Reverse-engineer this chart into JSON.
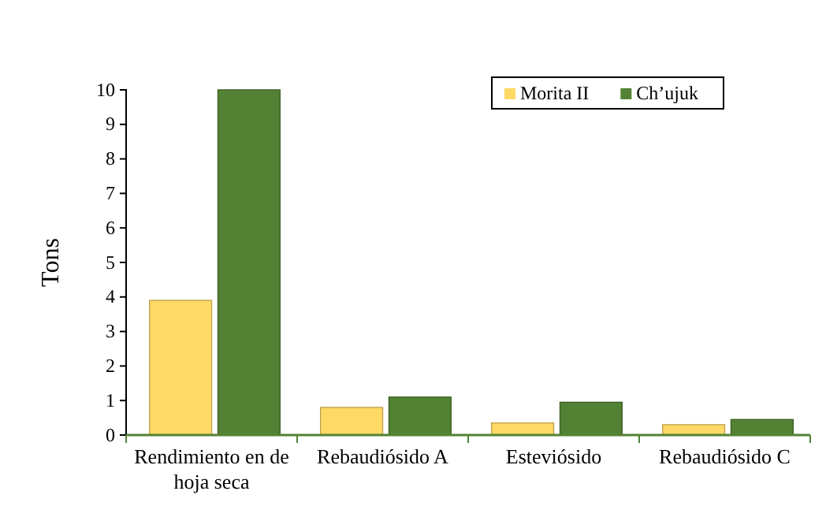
{
  "chart_data": {
    "type": "bar",
    "ylabel": "Tons",
    "categories": [
      "Rendimiento en de hoja seca",
      "Rebaudiósido A",
      "Esteviósido",
      "Rebaudiósido C"
    ],
    "series": [
      {
        "name": "Morita II",
        "color": "#ffd966",
        "values": [
          3.9,
          0.8,
          0.35,
          0.3
        ]
      },
      {
        "name": "Ch’ujuk",
        "color": "#548235",
        "values": [
          10,
          1.1,
          0.95,
          0.45
        ]
      }
    ],
    "ylim": [
      0,
      10
    ],
    "yticks": [
      0,
      1,
      2,
      3,
      4,
      5,
      6,
      7,
      8,
      9,
      10
    ],
    "grid": false,
    "legend": "top right"
  }
}
